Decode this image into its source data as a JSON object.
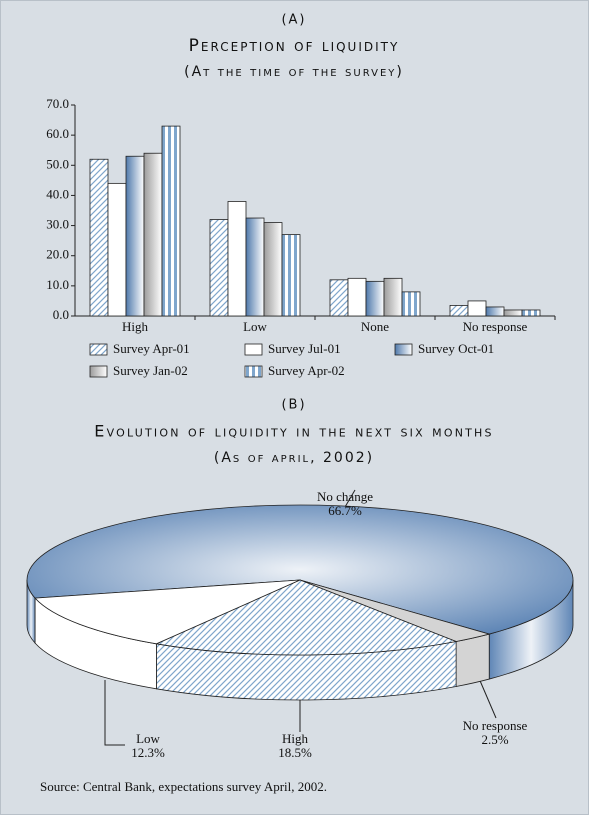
{
  "chart_data": [
    {
      "type": "bar",
      "label": "(A)",
      "title": "Perception of liquidity",
      "subtitle": "(At the time of the survey)",
      "categories": [
        "High",
        "Low",
        "None",
        "No response"
      ],
      "series": [
        {
          "name": "Survey Apr-01",
          "color": "#7fa6cc",
          "pattern": "diagonal",
          "values": [
            52,
            32,
            12,
            3.5
          ]
        },
        {
          "name": "Survey Jul-01",
          "color": "#ffffff",
          "pattern": "solid",
          "values": [
            44,
            38,
            12.5,
            5
          ]
        },
        {
          "name": "Survey Oct-01",
          "color": "#4f79ab",
          "pattern": "gradient",
          "values": [
            53,
            32.5,
            11.5,
            3
          ]
        },
        {
          "name": "Survey Jan-02",
          "color": "#9c9c9c",
          "pattern": "gradient",
          "values": [
            54,
            31,
            12.5,
            2
          ]
        },
        {
          "name": "Survey Apr-02",
          "color": "#7fa6cc",
          "pattern": "vertical",
          "values": [
            63,
            27,
            8,
            2
          ]
        }
      ],
      "ylim": [
        0,
        70
      ],
      "yticks": [
        {
          "value": 0,
          "label": "0.0"
        },
        {
          "value": 10,
          "label": "10.0"
        },
        {
          "value": 20,
          "label": "20.0"
        },
        {
          "value": 30,
          "label": "30.0"
        },
        {
          "value": 40,
          "label": "40.0"
        },
        {
          "value": 50,
          "label": "50.0"
        },
        {
          "value": 60,
          "label": "60.0"
        },
        {
          "value": 70,
          "label": "70.0"
        }
      ]
    },
    {
      "type": "pie",
      "label": "(B)",
      "title": "Evolution of liquidity in the next six months",
      "subtitle": "(As of april, 2002)",
      "categories": [
        "No change",
        "No response",
        "High",
        "Low"
      ],
      "values": [
        66.7,
        2.5,
        18.5,
        12.3
      ],
      "value_labels": [
        "66.7%",
        "2.5%",
        "18.5%",
        "12.3%"
      ],
      "colors": [
        "#5f86b6",
        "#d4d4d4",
        "#7fa6cc",
        "#ffffff"
      ],
      "patterns": [
        "gradient",
        "solid",
        "diagonal",
        "solid"
      ]
    }
  ],
  "source": "Source: Central Bank, expectations survey April, 2002."
}
